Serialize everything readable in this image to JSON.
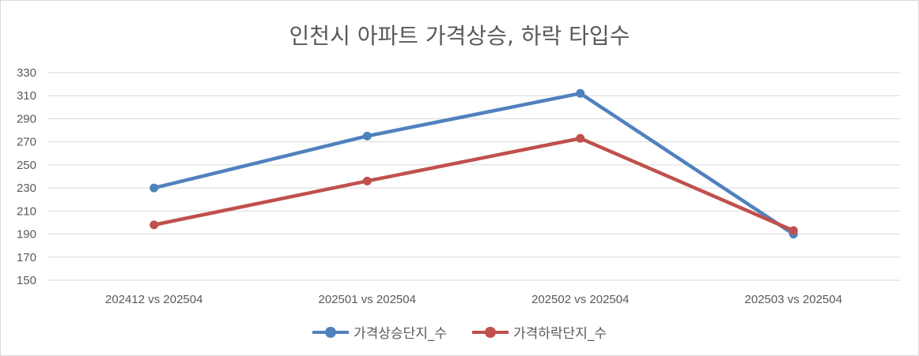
{
  "chart_data": {
    "type": "line",
    "title": "인천시 아파트 가격상승, 하락 타입수",
    "categories": [
      "202412 vs 202504",
      "202501 vs 202504",
      "202502 vs 202504",
      "202503 vs 202504"
    ],
    "ylim": [
      150,
      330
    ],
    "yticks": [
      150,
      170,
      190,
      210,
      230,
      250,
      270,
      290,
      310,
      330
    ],
    "grid": true,
    "legend_position": "bottom",
    "series": [
      {
        "name": "가격상승단지_수",
        "values": [
          230,
          275,
          312,
          190
        ],
        "color": "#4f81bd"
      },
      {
        "name": "가격하락단지_수",
        "values": [
          198,
          236,
          273,
          193
        ],
        "color": "#c0504d"
      }
    ]
  }
}
